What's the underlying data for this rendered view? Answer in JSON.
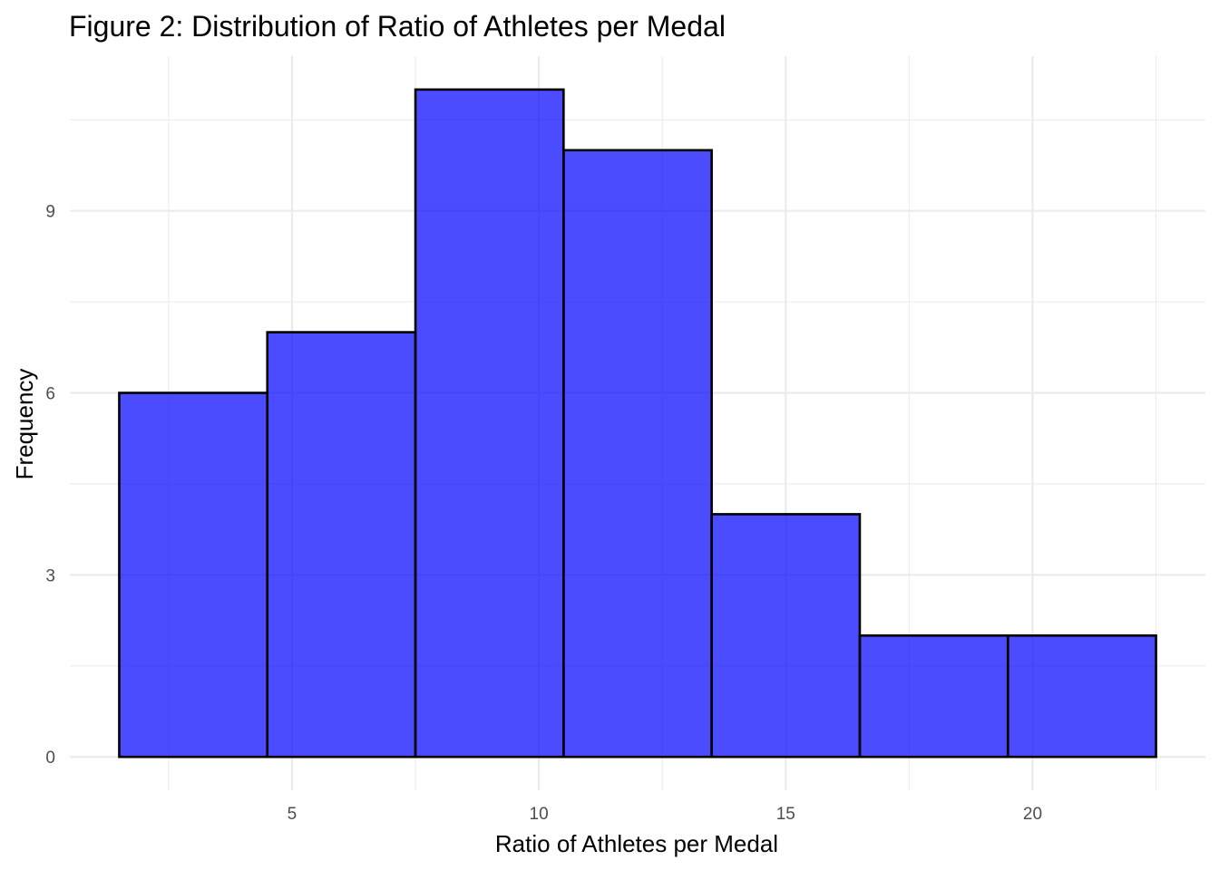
{
  "chart_data": {
    "type": "bar",
    "title": "Figure 2: Distribution of Ratio of Athletes per Medal",
    "xlabel": "Ratio of Athletes per Medal",
    "ylabel": "Frequency",
    "bins": [
      {
        "x0": 1.5,
        "x1": 4.5,
        "count": 6
      },
      {
        "x0": 4.5,
        "x1": 7.5,
        "count": 7
      },
      {
        "x0": 7.5,
        "x1": 10.5,
        "count": 11
      },
      {
        "x0": 10.5,
        "x1": 13.5,
        "count": 10
      },
      {
        "x0": 13.5,
        "x1": 16.5,
        "count": 4
      },
      {
        "x0": 16.5,
        "x1": 19.5,
        "count": 2
      },
      {
        "x0": 19.5,
        "x1": 22.5,
        "count": 2
      }
    ],
    "xlim": [
      0.5,
      23.5
    ],
    "ylim": [
      -0.55,
      11.55
    ],
    "x_ticks": [
      5,
      10,
      15,
      20
    ],
    "y_ticks": [
      0,
      3,
      6,
      9
    ],
    "grid": true,
    "colors": {
      "fill": "#0000FF",
      "fill_opacity": 0.7,
      "outline": "#000000",
      "grid": "#EBEBEB",
      "tick_text": "#4D4D4D"
    }
  }
}
